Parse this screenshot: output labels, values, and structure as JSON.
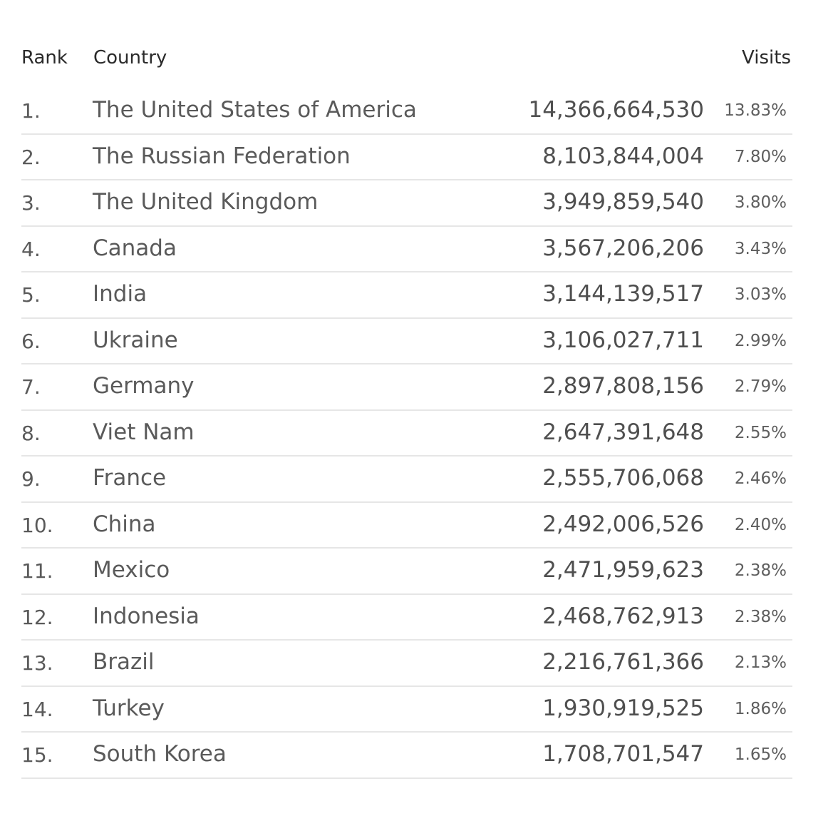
{
  "chart_data": {
    "type": "table",
    "columns": [
      "Rank",
      "Country",
      "Visits"
    ],
    "rows": [
      {
        "rank": "1.",
        "country": "The United States of America",
        "visits": "14,366,664,530",
        "share": "13.83%"
      },
      {
        "rank": "2.",
        "country": "The Russian Federation",
        "visits": "8,103,844,004",
        "share": "7.80%"
      },
      {
        "rank": "3.",
        "country": "The United Kingdom",
        "visits": "3,949,859,540",
        "share": "3.80%"
      },
      {
        "rank": "4.",
        "country": "Canada",
        "visits": "3,567,206,206",
        "share": "3.43%"
      },
      {
        "rank": "5.",
        "country": "India",
        "visits": "3,144,139,517",
        "share": "3.03%"
      },
      {
        "rank": "6.",
        "country": "Ukraine",
        "visits": "3,106,027,711",
        "share": "2.99%"
      },
      {
        "rank": "7.",
        "country": "Germany",
        "visits": "2,897,808,156",
        "share": "2.79%"
      },
      {
        "rank": "8.",
        "country": "Viet Nam",
        "visits": "2,647,391,648",
        "share": "2.55%"
      },
      {
        "rank": "9.",
        "country": "France",
        "visits": "2,555,706,068",
        "share": "2.46%"
      },
      {
        "rank": "10.",
        "country": "China",
        "visits": "2,492,006,526",
        "share": "2.40%"
      },
      {
        "rank": "11.",
        "country": "Mexico",
        "visits": "2,471,959,623",
        "share": "2.38%"
      },
      {
        "rank": "12.",
        "country": "Indonesia",
        "visits": "2,468,762,913",
        "share": "2.38%"
      },
      {
        "rank": "13.",
        "country": "Brazil",
        "visits": "2,216,761,366",
        "share": "2.13%"
      },
      {
        "rank": "14.",
        "country": "Turkey",
        "visits": "1,930,919,525",
        "share": "1.86%"
      },
      {
        "rank": "15.",
        "country": "South Korea",
        "visits": "1,708,701,547",
        "share": "1.65%"
      }
    ]
  },
  "colors": {
    "header_text": "#2a2a2a",
    "body_text": "#5a5a5a",
    "divider": "#e6e6e6",
    "background": "#ffffff"
  }
}
